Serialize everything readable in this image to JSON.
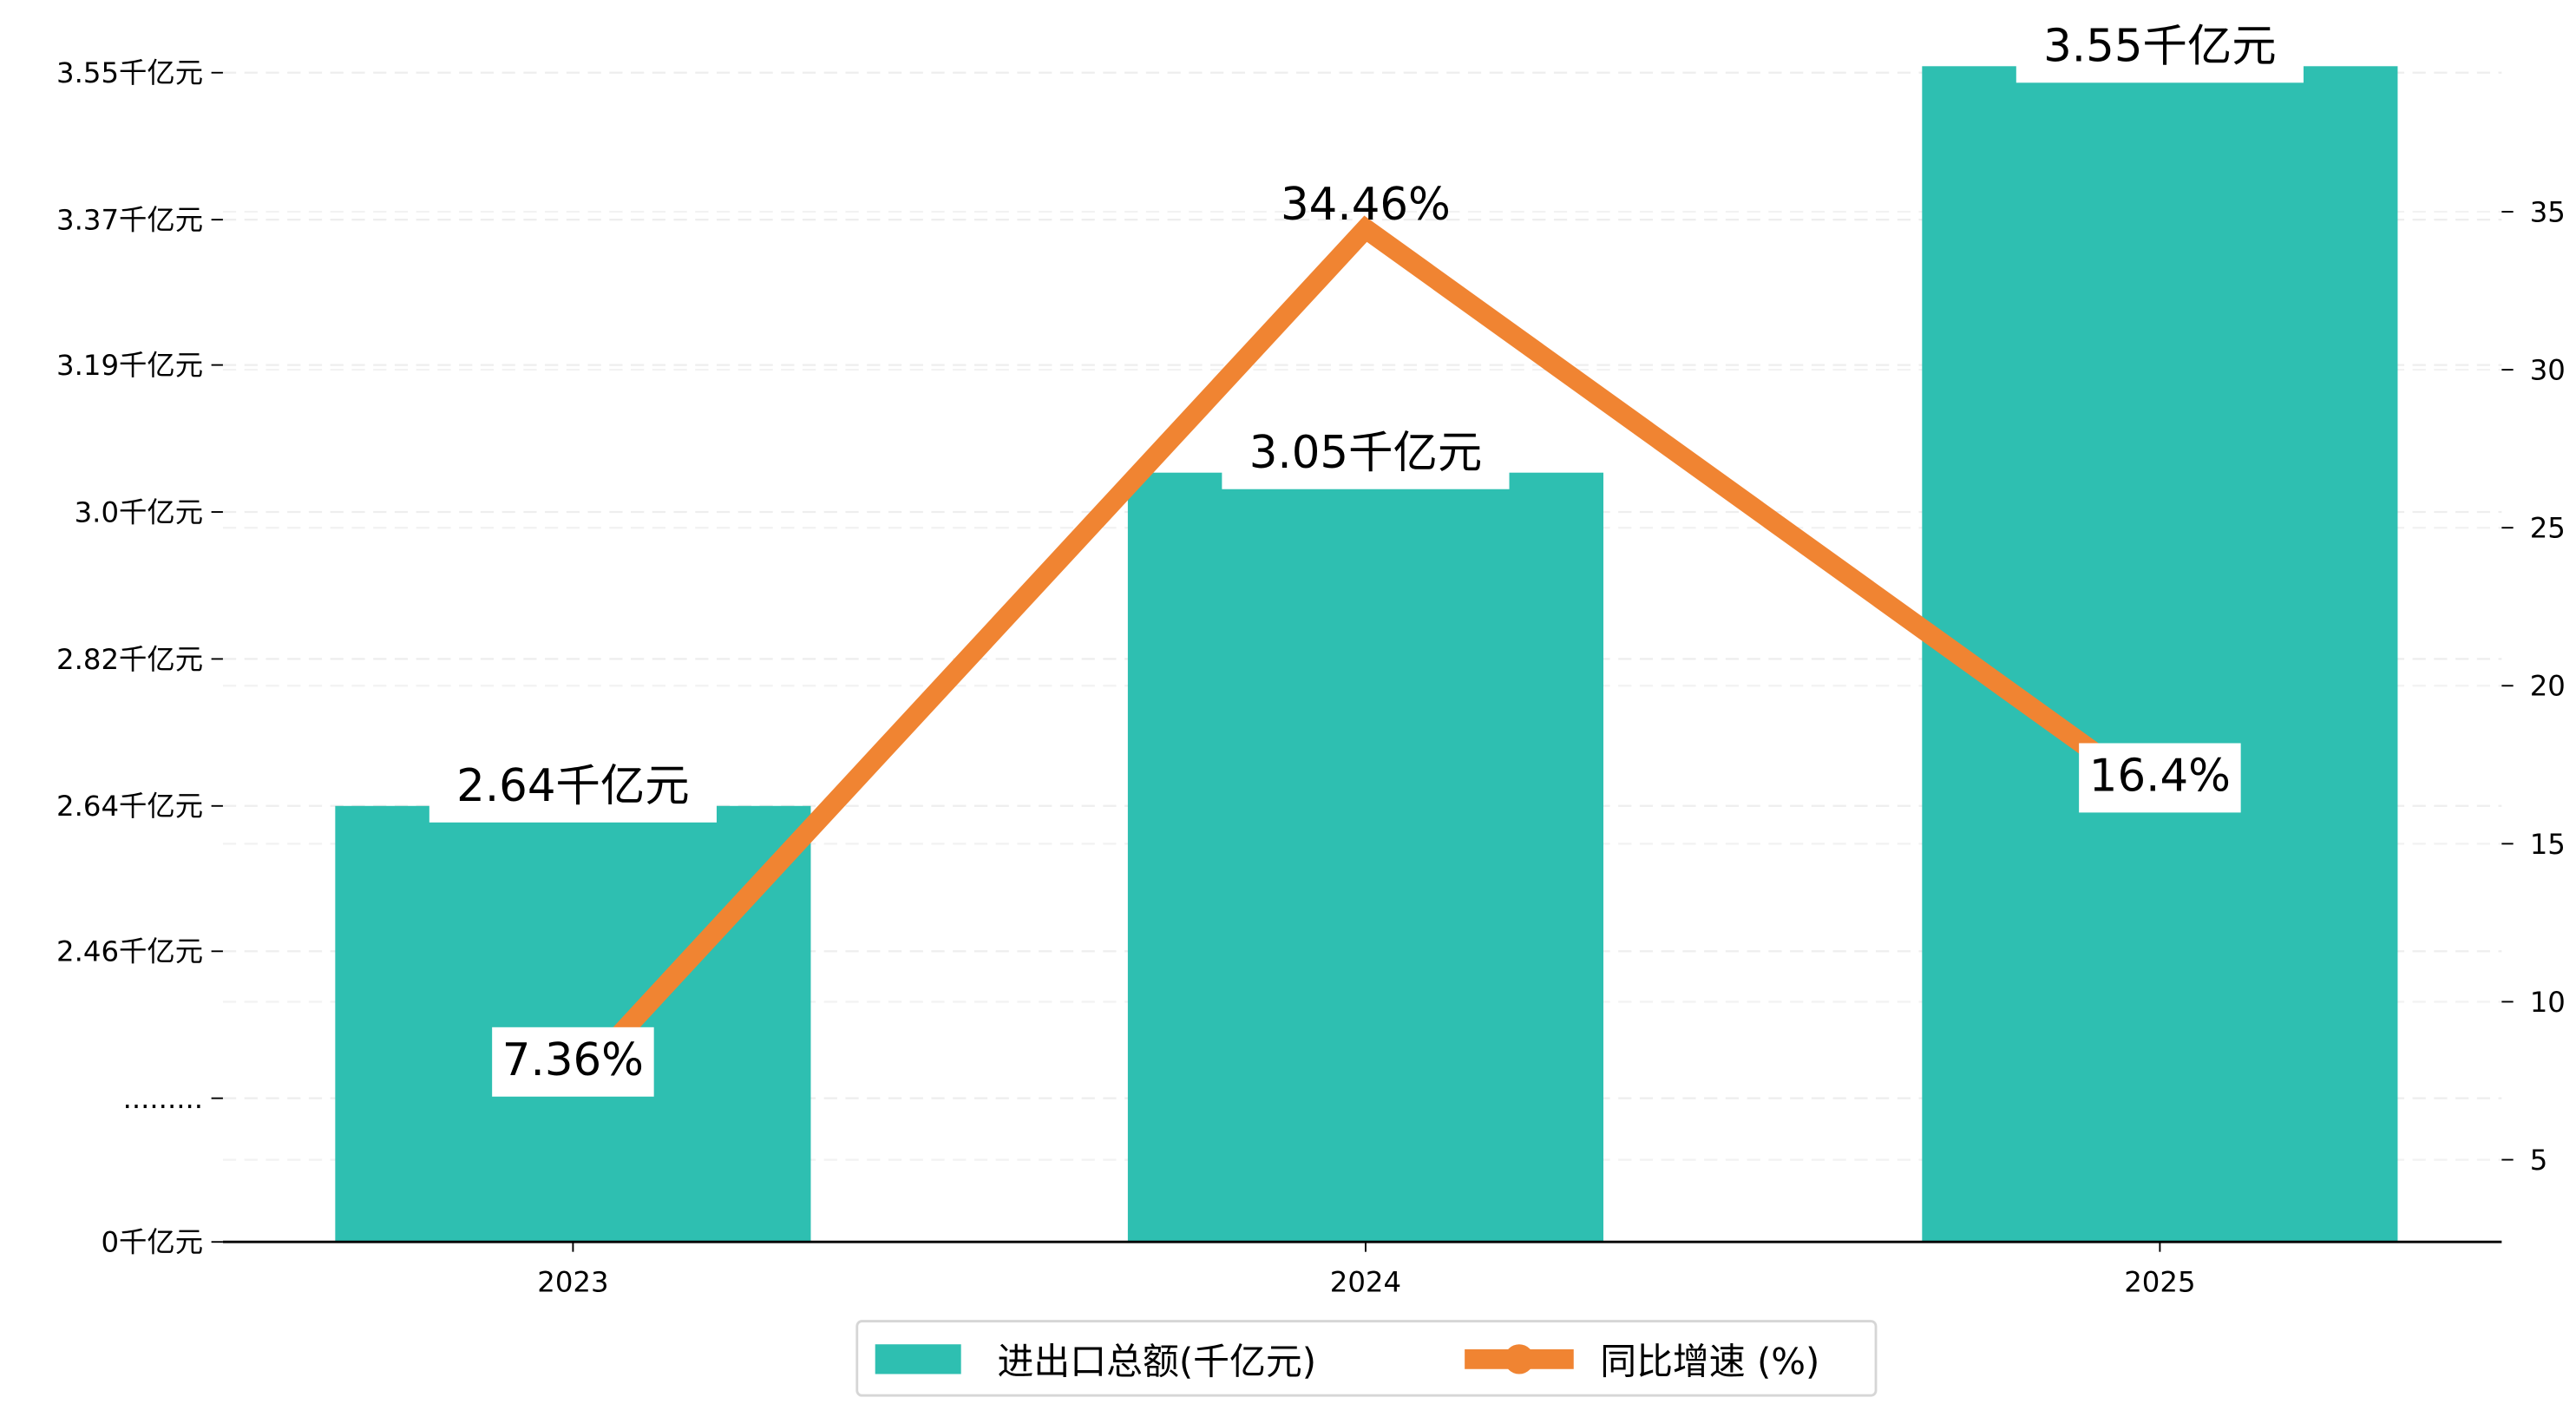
{
  "chart_data": {
    "type": "bar+line",
    "categories": [
      "2023",
      "2024",
      "2025"
    ],
    "series": [
      {
        "name": "进出口总额(千亿元)",
        "type": "bar",
        "axis": "left",
        "values": [
          2.64,
          3.05,
          3.55
        ],
        "labels": [
          "2.64千亿元",
          "3.05千亿元",
          "3.55千亿元"
        ],
        "color": "#2ebfb1"
      },
      {
        "name": "同比增速 (%)",
        "type": "line",
        "axis": "right",
        "values": [
          7.36,
          34.46,
          16.4
        ],
        "labels": [
          "7.36%",
          "34.46%",
          "16.4%"
        ],
        "color": "#f08432"
      }
    ],
    "left_axis": {
      "tick_labels": [
        "0千亿元",
        ".........",
        "2.46千亿元",
        "2.64千亿元",
        "2.82千亿元",
        "3.0千亿元",
        "3.19千亿元",
        "3.37千亿元",
        "3.55千亿元"
      ],
      "tick_values": [
        0,
        null,
        2.46,
        2.64,
        2.82,
        3.0,
        3.19,
        3.37,
        3.55
      ],
      "broken": true
    },
    "right_axis": {
      "tick_labels": [
        "5",
        "10",
        "15",
        "20",
        "25",
        "30",
        "35"
      ],
      "tick_values": [
        5,
        10,
        15,
        20,
        25,
        30,
        35
      ],
      "ylim": [
        2.4,
        39.4
      ]
    },
    "grid": true,
    "legend": {
      "placement": "bottom-center",
      "entries": [
        "进出口总额(千亿元)",
        "同比增速 (%)"
      ]
    },
    "title": "",
    "xlabel": "",
    "ylabel": ""
  }
}
